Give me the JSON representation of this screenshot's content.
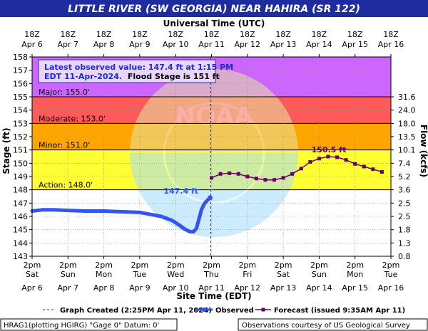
{
  "header": {
    "title": "LITTLE RIVER (SW GEORGIA) NEAR HAHIRA (SR 122)",
    "top_axis_title": "Universal Time (UTC)",
    "bottom_axis_title": "Site Time (EDT)"
  },
  "annotation": {
    "line1": "Latest observed value: 147.4 ft at 1:15 PM",
    "line2a": "EDT 11-Apr-2024.",
    "line2b": "Flood Stage is 151 ft",
    "observed_peak_label": "147.4 ft",
    "forecast_peak_label": "150.5 ft"
  },
  "flood_categories": [
    {
      "name": "Major",
      "label": "Major: 155.0'",
      "from": 155.0,
      "to": 158.0,
      "color": "#cc66ff"
    },
    {
      "name": "Moderate",
      "label": "Moderate: 153.0'",
      "from": 153.0,
      "to": 155.0,
      "color": "#ff5a5a"
    },
    {
      "name": "Minor",
      "label": "Minor: 151.0'",
      "from": 151.0,
      "to": 153.0,
      "color": "#ffa500"
    },
    {
      "name": "Action",
      "label": "Action: 148.0'",
      "from": 148.0,
      "to": 151.0,
      "color": "#ffff33"
    }
  ],
  "legend": {
    "graph_created": "Graph Created (2:25PM Apr 11, 2024)",
    "observed": "Observed",
    "forecast": "Forecast (issued 9:35AM Apr 11)"
  },
  "footer": {
    "left": "HRAG1(plotting HGIRG) \"Gage 0\" Datum: 0'",
    "right": "Observations courtesy of US Geological Survey"
  },
  "colors": {
    "title_bar": "#1e2ca0",
    "observed": "#3355ee",
    "forecast": "#660066",
    "watermark_blue": "#a6dcff",
    "watermark_yellow": "#e6e6a0"
  },
  "chart_data": {
    "type": "line",
    "ylabel": "Stage (ft)",
    "y2label": "Flow (kcfs)",
    "ylim": [
      143,
      158
    ],
    "yticks": [
      143,
      144,
      145,
      146,
      147,
      148,
      149,
      150,
      151,
      152,
      153,
      154,
      155,
      156,
      157,
      158
    ],
    "flow_ticks": [
      {
        "stage": 143,
        "label": "0.8"
      },
      {
        "stage": 144,
        "label": "1.3"
      },
      {
        "stage": 145,
        "label": "1.8"
      },
      {
        "stage": 146,
        "label": "2.5"
      },
      {
        "stage": 147,
        "label": "2.5"
      },
      {
        "stage": 148,
        "label": "3.6"
      },
      {
        "stage": 149,
        "label": "5.2"
      },
      {
        "stage": 150,
        "label": "7.4"
      },
      {
        "stage": 151,
        "label": "10.1"
      },
      {
        "stage": 152,
        "label": "13.5"
      },
      {
        "stage": 153,
        "label": "18.0"
      },
      {
        "stage": 154,
        "label": "24.0"
      },
      {
        "stage": 155,
        "label": "31.6"
      }
    ],
    "xlim_days": [
      0,
      10
    ],
    "bottom_ticks": [
      {
        "time": "2pm",
        "day": "Sat",
        "date": "Apr 6"
      },
      {
        "time": "2pm",
        "day": "Sun",
        "date": "Apr 7"
      },
      {
        "time": "2pm",
        "day": "Mon",
        "date": "Apr 8"
      },
      {
        "time": "2pm",
        "day": "Tue",
        "date": "Apr 9"
      },
      {
        "time": "2pm",
        "day": "Wed",
        "date": "Apr 10"
      },
      {
        "time": "2pm",
        "day": "Thu",
        "date": "Apr 11"
      },
      {
        "time": "2pm",
        "day": "Fri",
        "date": "Apr 12"
      },
      {
        "time": "2pm",
        "day": "Sat",
        "date": "Apr 13"
      },
      {
        "time": "2pm",
        "day": "Sun",
        "date": "Apr 14"
      },
      {
        "time": "2pm",
        "day": "Mon",
        "date": "Apr 15"
      },
      {
        "time": "2pm",
        "day": "Tue",
        "date": "Apr 16"
      }
    ],
    "top_ticks": [
      {
        "time": "18Z",
        "date": "Apr 6"
      },
      {
        "time": "18Z",
        "date": "Apr 7"
      },
      {
        "time": "18Z",
        "date": "Apr 8"
      },
      {
        "time": "18Z",
        "date": "Apr 9"
      },
      {
        "time": "18Z",
        "date": "Apr 10"
      },
      {
        "time": "18Z",
        "date": "Apr 11"
      },
      {
        "time": "18Z",
        "date": "Apr 12"
      },
      {
        "time": "18Z",
        "date": "Apr 13"
      },
      {
        "time": "18Z",
        "date": "Apr 14"
      },
      {
        "time": "18Z",
        "date": "Apr 15"
      },
      {
        "time": "18Z",
        "date": "Apr 16"
      }
    ],
    "graph_created_day": 4.98,
    "series": [
      {
        "name": "Observed",
        "x": [
          0.0,
          0.3,
          0.6,
          1.0,
          1.5,
          2.0,
          2.5,
          3.0,
          3.3,
          3.6,
          3.9,
          4.1,
          4.25,
          4.4,
          4.5,
          4.58,
          4.65,
          4.72,
          4.8,
          4.88,
          4.96
        ],
        "y": [
          146.4,
          146.5,
          146.5,
          146.45,
          146.4,
          146.4,
          146.35,
          146.3,
          146.15,
          146.0,
          145.7,
          145.35,
          145.05,
          144.85,
          144.85,
          145.1,
          145.8,
          146.5,
          146.95,
          147.2,
          147.4
        ]
      },
      {
        "name": "Forecast",
        "x": [
          5.0,
          5.25,
          5.5,
          5.75,
          6.0,
          6.25,
          6.5,
          6.75,
          7.0,
          7.25,
          7.5,
          7.75,
          8.0,
          8.25,
          8.5,
          8.75,
          9.0,
          9.25,
          9.5,
          9.75
        ],
        "y": [
          148.9,
          149.2,
          149.25,
          149.2,
          149.0,
          148.85,
          148.75,
          148.75,
          148.9,
          149.2,
          149.6,
          150.1,
          150.35,
          150.5,
          150.45,
          150.25,
          149.95,
          149.75,
          149.55,
          149.35
        ]
      }
    ]
  }
}
